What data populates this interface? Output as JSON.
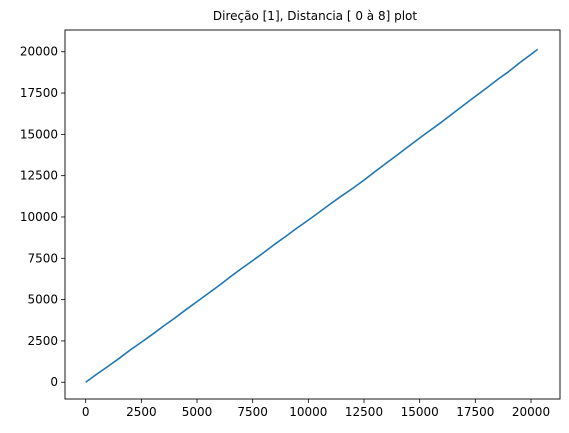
{
  "chart_data": {
    "type": "line",
    "title": "Direção [1], Distancia [ 0 à 8] plot",
    "xlabel": "",
    "ylabel": "",
    "xlim": [
      -929,
      21302
    ],
    "ylim": [
      -1015,
      21315
    ],
    "x_ticks": [
      0,
      2500,
      5000,
      7500,
      10000,
      12500,
      15000,
      17500,
      20000
    ],
    "y_ticks": [
      0,
      2500,
      5000,
      7500,
      10000,
      12500,
      15000,
      17500,
      20000
    ],
    "grid": false,
    "legend": false,
    "series": [
      {
        "color": "#1f77b4",
        "x": [
          0,
          500,
          1000,
          1500,
          2000,
          2500,
          3000,
          3500,
          4000,
          4500,
          5000,
          5500,
          6000,
          6500,
          7000,
          7500,
          8000,
          8500,
          9000,
          9500,
          10000,
          10500,
          11000,
          11500,
          12000,
          12500,
          13000,
          13500,
          14000,
          14500,
          15000,
          15500,
          16000,
          16500,
          17000,
          17500,
          18000,
          18500,
          19000,
          19500,
          20000,
          20300
        ],
        "values": [
          0,
          490,
          960,
          1440,
          1950,
          2420,
          2900,
          3400,
          3880,
          4390,
          4880,
          5370,
          5860,
          6380,
          6880,
          7360,
          7850,
          8360,
          8840,
          9340,
          9810,
          10300,
          10800,
          11280,
          11740,
          12230,
          12750,
          13260,
          13760,
          14270,
          14780,
          15270,
          15760,
          16280,
          16790,
          17300,
          17800,
          18320,
          18800,
          19340,
          19840,
          20150
        ]
      }
    ]
  }
}
